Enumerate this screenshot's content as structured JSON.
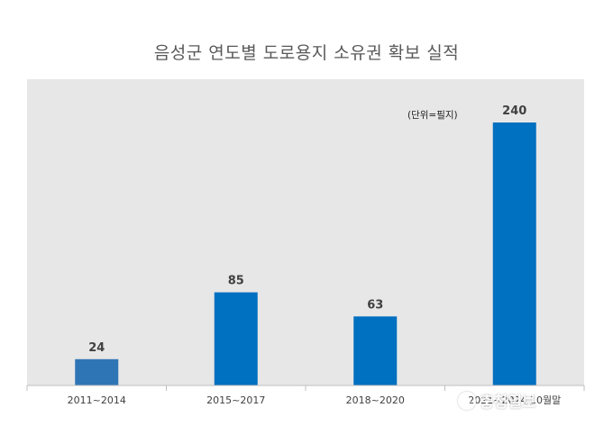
{
  "chart_data": {
    "type": "bar",
    "title": "음성군 연도별 도로용지 소유권 확보 실적",
    "unit_note": "(단위=필지)",
    "categories": [
      "2011~2014",
      "2015~2017",
      "2018~2020",
      "2021~2024.10월말"
    ],
    "values": [
      24,
      85,
      63,
      240
    ],
    "data_labels": [
      "24",
      "85",
      "63",
      "240"
    ],
    "ylim": [
      0,
      240
    ],
    "grid": false,
    "legend": "none",
    "colors": {
      "plot_background": "#e7e7e7",
      "bars": [
        "#2e75b6",
        "#0070c0",
        "#0070c0",
        "#0070c0"
      ],
      "axis": "#bfbfbf",
      "labels": "#404040"
    }
  },
  "watermark": {
    "text": "충청일보",
    "icon": "circle-logo-icon"
  }
}
